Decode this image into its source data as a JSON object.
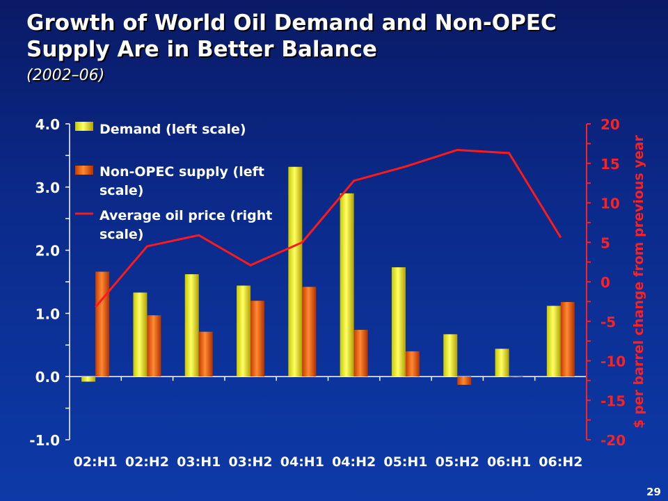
{
  "slide": {
    "title": "Growth of World Oil Demand and Non-OPEC Supply Are in Better Balance",
    "subtitle": "(2002–06)",
    "page_number": "29"
  },
  "colors": {
    "demand": "#f2f20a",
    "supply": "#ee5a0a",
    "price": "#ff1a1a",
    "left_axis": "#ffffff",
    "right_axis": "#ff2020"
  },
  "chart_data": {
    "type": "bar",
    "categories": [
      "02:H1",
      "02:H2",
      "03:H1",
      "03:H2",
      "04:H1",
      "04:H2",
      "05:H1",
      "05:H2",
      "06:H1",
      "06:H2"
    ],
    "series": [
      {
        "name": "Demand (left scale)",
        "axis": "left",
        "values": [
          -0.08,
          1.33,
          1.62,
          1.44,
          3.32,
          2.9,
          1.73,
          0.67,
          0.44,
          1.12
        ]
      },
      {
        "name": "Non-OPEC supply (left scale)",
        "axis": "left",
        "values": [
          1.66,
          0.97,
          0.71,
          1.2,
          1.42,
          0.74,
          0.4,
          -0.13,
          0.0,
          1.18
        ]
      },
      {
        "name": "Average oil price (right scale)",
        "axis": "right",
        "type": "line",
        "values": [
          -3.2,
          4.5,
          5.9,
          2.1,
          5.0,
          12.8,
          14.6,
          16.7,
          16.3,
          5.6
        ]
      }
    ],
    "left_axis": {
      "ylim": [
        -1.0,
        4.0
      ],
      "ticks": [
        "4.0",
        "3.0",
        "2.0",
        "1.0",
        "0.0",
        "-1.0"
      ]
    },
    "right_axis": {
      "ylim": [
        -20,
        20
      ],
      "ticks": [
        "20",
        "15",
        "10",
        "5",
        "0",
        "-5",
        "-10",
        "-15",
        "-20"
      ],
      "label": "$ per barrel change from previous year"
    },
    "legend": {
      "placement": "top-left"
    }
  }
}
